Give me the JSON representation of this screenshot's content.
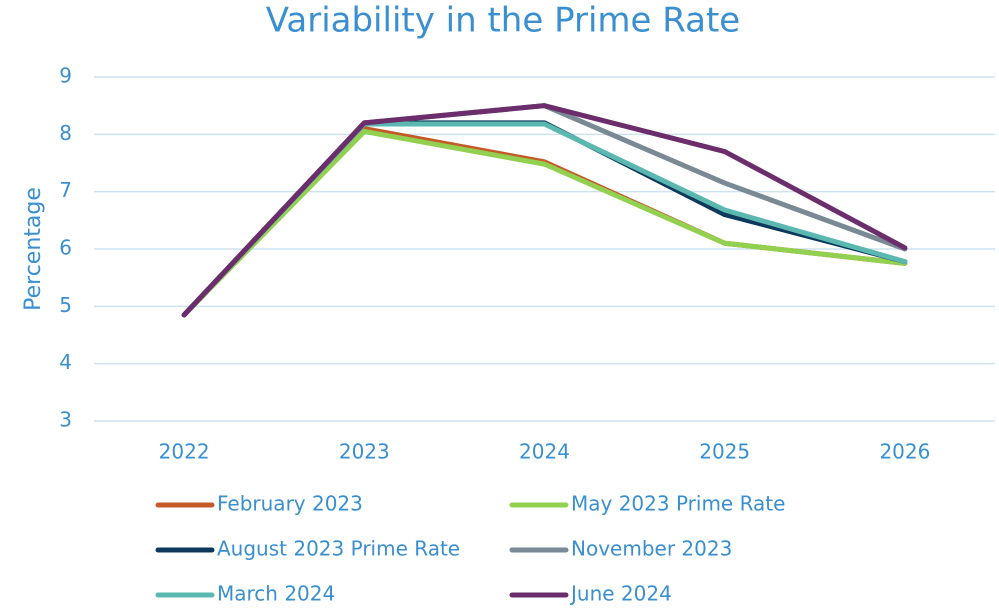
{
  "chart_data": {
    "type": "line",
    "title": "Variability in the Prime Rate",
    "ylabel": "Percentage",
    "categories": [
      "2022",
      "2023",
      "2024",
      "2025",
      "2026"
    ],
    "series": [
      {
        "name": "February 2023",
        "color": "#c55a28",
        "values": [
          4.85,
          8.1,
          7.52,
          6.1,
          5.75
        ]
      },
      {
        "name": "May 2023 Prime Rate",
        "color": "#92d050",
        "values": [
          4.85,
          8.05,
          7.48,
          6.1,
          5.75
        ]
      },
      {
        "name": "August 2023 Prime Rate",
        "color": "#0d3a5c",
        "values": [
          4.85,
          8.2,
          8.2,
          6.6,
          5.78
        ]
      },
      {
        "name": "November 2023",
        "color": "#7a8a94",
        "values": [
          4.85,
          8.2,
          8.5,
          7.15,
          6.0
        ]
      },
      {
        "name": "March 2024",
        "color": "#5ab8b0",
        "values": [
          4.85,
          8.18,
          8.18,
          6.68,
          5.78
        ]
      },
      {
        "name": "June 2024",
        "color": "#6b2d6b",
        "values": [
          4.85,
          8.2,
          8.5,
          7.7,
          6.02
        ]
      }
    ],
    "ylim": [
      3,
      9
    ],
    "yticks": [
      3,
      4,
      5,
      6,
      7,
      8,
      9
    ],
    "grid": true,
    "legend": "bottom"
  }
}
